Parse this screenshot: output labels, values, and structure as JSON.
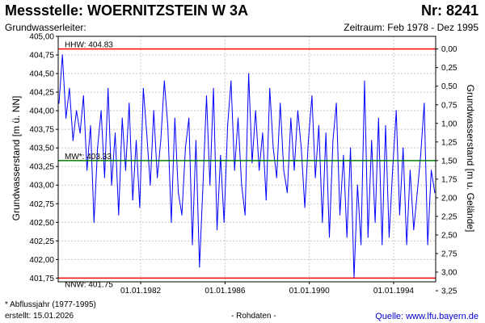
{
  "header": {
    "title": "Messstelle: WOERNITZSTEIN W 3A",
    "number": "Nr: 8241",
    "aquifer": "Grundwasserleiter:",
    "period": "Zeitraum: Feb 1978 - Dez 1995"
  },
  "footer": {
    "note": "* Abflussjahr (1977-1995)",
    "created": "erstellt:  15.01.2026",
    "raw": "- Rohdaten -",
    "source": "Quelle: www.lfu.bayern.de"
  },
  "colors": {
    "series": "#0000ff",
    "threshold": "#ff0000",
    "mean": "#008000",
    "grid": "#c8c8c8"
  },
  "chart_data": {
    "type": "line",
    "ylabel": "Grundwasserstand [m ü. NN]",
    "y2label": "Grundwasserstand [m u. Gelände]",
    "ylim": [
      401.7,
      405.0
    ],
    "y2_ground_offset": 404.83,
    "xlim": [
      "1978-02-01",
      "1995-12-31"
    ],
    "x_ticks": [
      {
        "date": "1982-01-01",
        "label": "01.01.1982"
      },
      {
        "date": "1986-01-01",
        "label": "01.01.1986"
      },
      {
        "date": "1990-01-01",
        "label": "01.01.1990"
      },
      {
        "date": "1994-01-01",
        "label": "01.01.1994"
      }
    ],
    "y_ticks": [
      {
        "v": 401.75,
        "label": "401,75"
      },
      {
        "v": 402.0,
        "label": "402,00"
      },
      {
        "v": 402.25,
        "label": "402,25"
      },
      {
        "v": 402.5,
        "label": "402,50"
      },
      {
        "v": 402.75,
        "label": "402,75"
      },
      {
        "v": 403.0,
        "label": "403,00"
      },
      {
        "v": 403.25,
        "label": "403,25"
      },
      {
        "v": 403.5,
        "label": "403,50"
      },
      {
        "v": 403.75,
        "label": "403,75"
      },
      {
        "v": 404.0,
        "label": "404,00"
      },
      {
        "v": 404.25,
        "label": "404,25"
      },
      {
        "v": 404.5,
        "label": "404,50"
      },
      {
        "v": 404.75,
        "label": "404,75"
      },
      {
        "v": 405.0,
        "label": "405,00"
      }
    ],
    "y2_ticks": [
      {
        "d": 0.0,
        "label": "0,00"
      },
      {
        "d": 0.25,
        "label": "0,25"
      },
      {
        "d": 0.5,
        "label": "0,50"
      },
      {
        "d": 0.75,
        "label": "0,75"
      },
      {
        "d": 1.0,
        "label": "1,00"
      },
      {
        "d": 1.25,
        "label": "1,25"
      },
      {
        "d": 1.5,
        "label": "1,50"
      },
      {
        "d": 1.75,
        "label": "1,75"
      },
      {
        "d": 2.0,
        "label": "2,00"
      },
      {
        "d": 2.25,
        "label": "2,25"
      },
      {
        "d": 2.5,
        "label": "2,50"
      },
      {
        "d": 2.75,
        "label": "2,75"
      },
      {
        "d": 3.0,
        "label": "3,00"
      },
      {
        "d": 3.25,
        "label": "3,25"
      }
    ],
    "reference_lines": [
      {
        "name": "HHW",
        "value": 404.83,
        "label": "HHW: 404.83",
        "color": "#ff0000"
      },
      {
        "name": "MW*",
        "value": 403.33,
        "label": "MW*: 403.33",
        "color": "#008000"
      },
      {
        "name": "NNW",
        "value": 401.75,
        "label": "NNW: 401.75",
        "color": "#ff0000"
      }
    ],
    "grid": true,
    "series": [
      {
        "x": [
          "1978-02",
          "1978-04",
          "1978-06",
          "1978-08",
          "1978-10",
          "1978-12",
          "1979-02",
          "1979-04",
          "1979-06",
          "1979-08",
          "1979-10",
          "1979-12",
          "1980-02",
          "1980-04",
          "1980-06",
          "1980-08",
          "1980-10",
          "1980-12",
          "1981-02",
          "1981-04",
          "1981-06",
          "1981-08",
          "1981-10",
          "1981-12",
          "1982-02",
          "1982-04",
          "1982-06",
          "1982-08",
          "1982-10",
          "1982-12",
          "1983-02",
          "1983-04",
          "1983-06",
          "1983-08",
          "1983-10",
          "1983-12",
          "1984-02",
          "1984-04",
          "1984-06",
          "1984-08",
          "1984-10",
          "1984-12",
          "1985-02",
          "1985-04",
          "1985-06",
          "1985-08",
          "1985-10",
          "1985-12",
          "1986-02",
          "1986-04",
          "1986-06",
          "1986-08",
          "1986-10",
          "1986-12",
          "1987-02",
          "1987-04",
          "1987-06",
          "1987-08",
          "1987-10",
          "1987-12",
          "1988-02",
          "1988-04",
          "1988-06",
          "1988-08",
          "1988-10",
          "1988-12",
          "1989-02",
          "1989-04",
          "1989-06",
          "1989-08",
          "1989-10",
          "1989-12",
          "1990-02",
          "1990-04",
          "1990-06",
          "1990-08",
          "1990-10",
          "1990-12",
          "1991-02",
          "1991-04",
          "1991-06",
          "1991-08",
          "1991-10",
          "1991-12",
          "1992-02",
          "1992-04",
          "1992-06",
          "1992-08",
          "1992-10",
          "1992-12",
          "1993-02",
          "1993-04",
          "1993-06",
          "1993-08",
          "1993-10",
          "1993-12",
          "1994-02",
          "1994-04",
          "1994-06",
          "1994-08",
          "1994-10",
          "1994-12",
          "1995-02",
          "1995-04",
          "1995-06",
          "1995-08",
          "1995-10",
          "1995-12"
        ],
        "y": [
          404.1,
          404.75,
          403.9,
          404.3,
          403.6,
          404.0,
          403.7,
          404.2,
          403.2,
          403.8,
          402.5,
          403.5,
          404.0,
          403.1,
          404.3,
          403.0,
          403.7,
          402.6,
          403.9,
          403.2,
          404.1,
          402.8,
          403.6,
          402.7,
          404.3,
          403.7,
          403.0,
          404.0,
          403.1,
          403.6,
          404.4,
          403.8,
          402.5,
          403.9,
          402.9,
          402.6,
          403.5,
          403.9,
          402.2,
          403.6,
          401.9,
          403.0,
          404.2,
          403.0,
          404.3,
          402.4,
          403.4,
          402.5,
          403.8,
          404.4,
          403.2,
          403.9,
          403.0,
          402.6,
          404.5,
          403.3,
          404.0,
          403.2,
          403.7,
          402.8,
          404.3,
          403.5,
          403.1,
          404.1,
          403.2,
          402.9,
          403.9,
          403.2,
          404.0,
          403.5,
          402.7,
          403.6,
          404.2,
          403.1,
          403.8,
          402.5,
          403.7,
          402.3,
          403.6,
          404.1,
          402.6,
          403.4,
          402.3,
          403.5,
          401.75,
          403.0,
          402.2,
          404.4,
          402.3,
          403.6,
          402.5,
          403.9,
          402.2,
          403.8,
          402.3,
          403.2,
          404.0,
          402.6,
          403.5,
          402.2,
          403.2,
          402.4,
          402.9,
          403.4,
          404.1,
          402.2,
          403.2,
          402.9
        ]
      }
    ]
  }
}
